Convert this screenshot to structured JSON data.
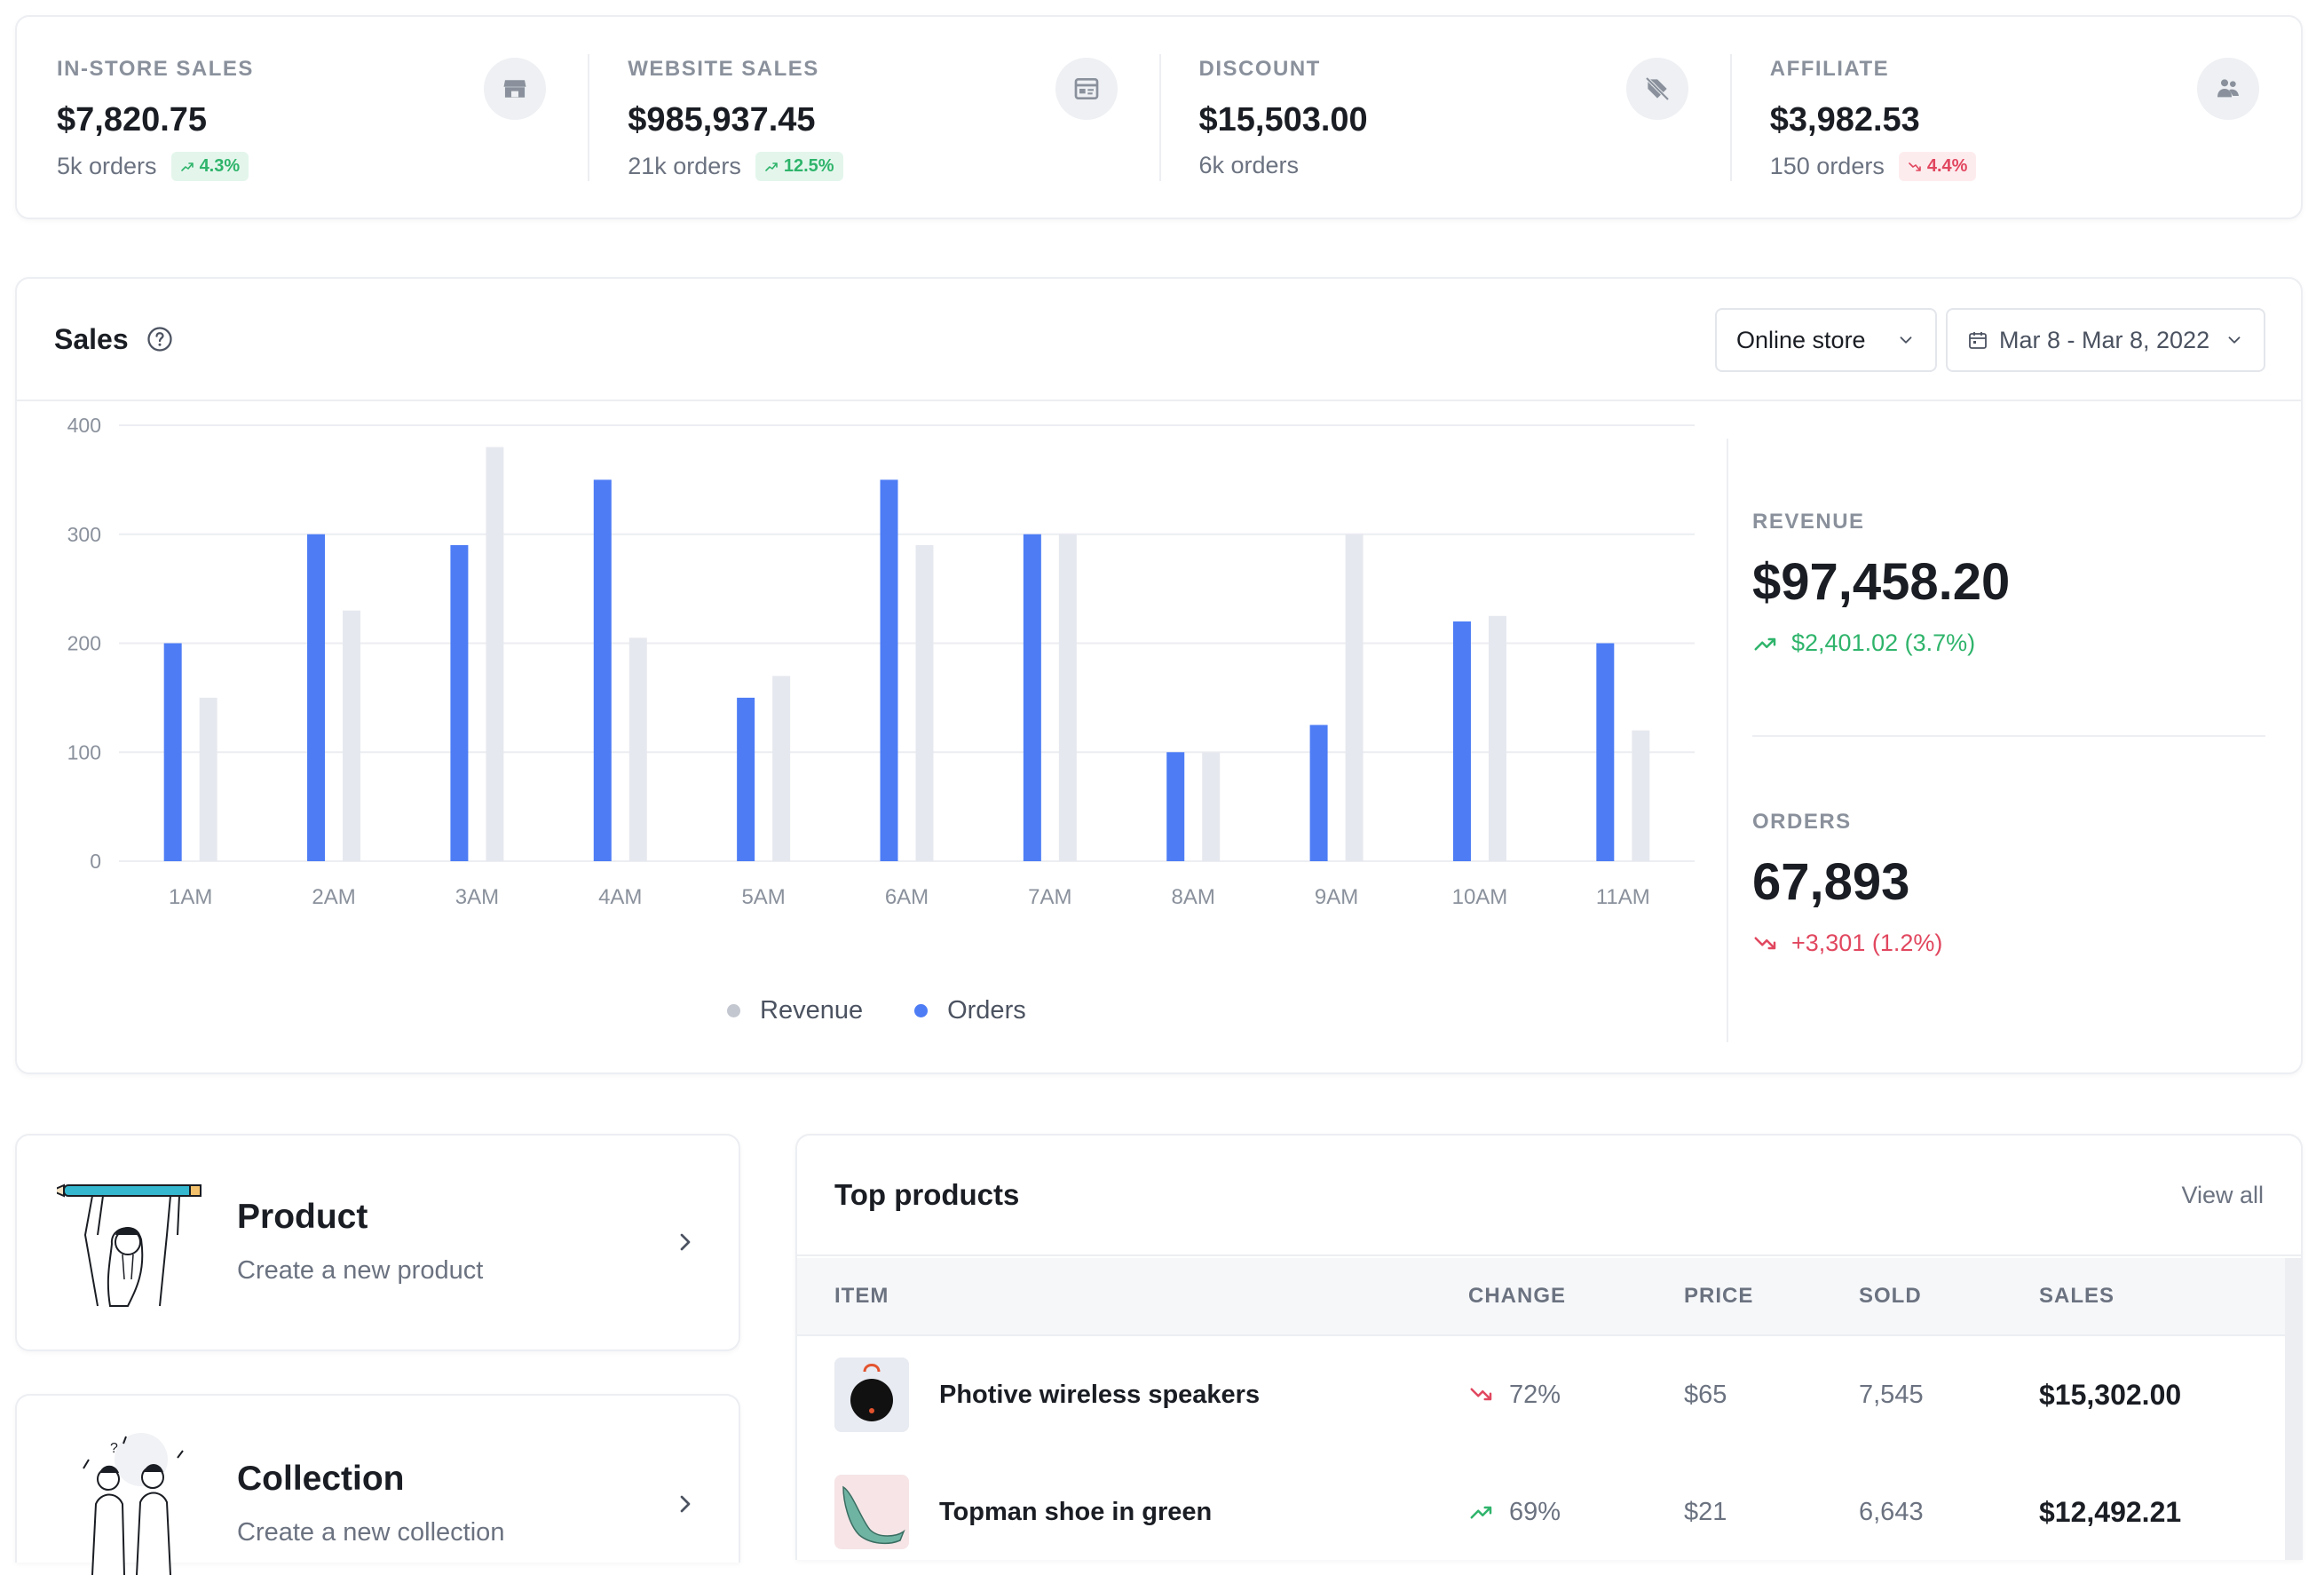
{
  "stats": [
    {
      "label": "IN-STORE SALES",
      "value": "$7,820.75",
      "orders": "5k orders",
      "change": "4.3%",
      "trend": "up",
      "icon": "store-icon"
    },
    {
      "label": "WEBSITE SALES",
      "value": "$985,937.45",
      "orders": "21k orders",
      "change": "12.5%",
      "trend": "up",
      "icon": "browser-icon"
    },
    {
      "label": "DISCOUNT",
      "value": "$15,503.00",
      "orders": "6k orders",
      "change": "",
      "trend": "none",
      "icon": "tag-off-icon"
    },
    {
      "label": "AFFILIATE",
      "value": "$3,982.53",
      "orders": "150 orders",
      "change": "4.4%",
      "trend": "down",
      "icon": "people-icon"
    }
  ],
  "sales": {
    "title": "Sales",
    "store_select": "Online store",
    "date_range": "Mar 8 - Mar 8, 2022",
    "revenue": {
      "label": "REVENUE",
      "value": "$97,458.20",
      "change": "$2,401.02 (3.7%)",
      "trend": "up"
    },
    "orders": {
      "label": "ORDERS",
      "value": "67,893",
      "change": "+3,301 (1.2%)",
      "trend": "down"
    },
    "legend": {
      "revenue": "Revenue",
      "orders": "Orders"
    }
  },
  "chart_data": {
    "type": "bar",
    "categories": [
      "1AM",
      "2AM",
      "3AM",
      "4AM",
      "5AM",
      "6AM",
      "7AM",
      "8AM",
      "9AM",
      "10AM",
      "11AM"
    ],
    "series": [
      {
        "name": "Orders",
        "values": [
          200,
          300,
          290,
          350,
          150,
          350,
          300,
          100,
          125,
          220,
          200
        ],
        "color": "#4d7cf5"
      },
      {
        "name": "Revenue",
        "values": [
          150,
          230,
          380,
          205,
          170,
          290,
          300,
          100,
          300,
          225,
          120
        ],
        "color": "#e6e8ef"
      }
    ],
    "yticks": [
      0,
      100,
      200,
      300,
      400
    ],
    "ylim": [
      0,
      400
    ],
    "grid": true,
    "legend_position": "bottom-center"
  },
  "actions": [
    {
      "title": "Product",
      "subtitle": "Create a new product"
    },
    {
      "title": "Collection",
      "subtitle": "Create a new collection"
    }
  ],
  "top_products": {
    "title": "Top products",
    "view_all": "View all",
    "columns": [
      "ITEM",
      "CHANGE",
      "PRICE",
      "SOLD",
      "SALES"
    ],
    "rows": [
      {
        "name": "Photive wireless speakers",
        "change": "72%",
        "trend": "down",
        "price": "$65",
        "sold": "7,545",
        "sales": "$15,302.00"
      },
      {
        "name": "Topman shoe in green",
        "change": "69%",
        "trend": "up",
        "price": "$21",
        "sold": "6,643",
        "sales": "$12,492.21"
      }
    ]
  },
  "colors": {
    "accent": "#4d7cf5",
    "up": "#2fb46b",
    "down": "#e1475f",
    "muted_bar": "#e6e8ef"
  }
}
